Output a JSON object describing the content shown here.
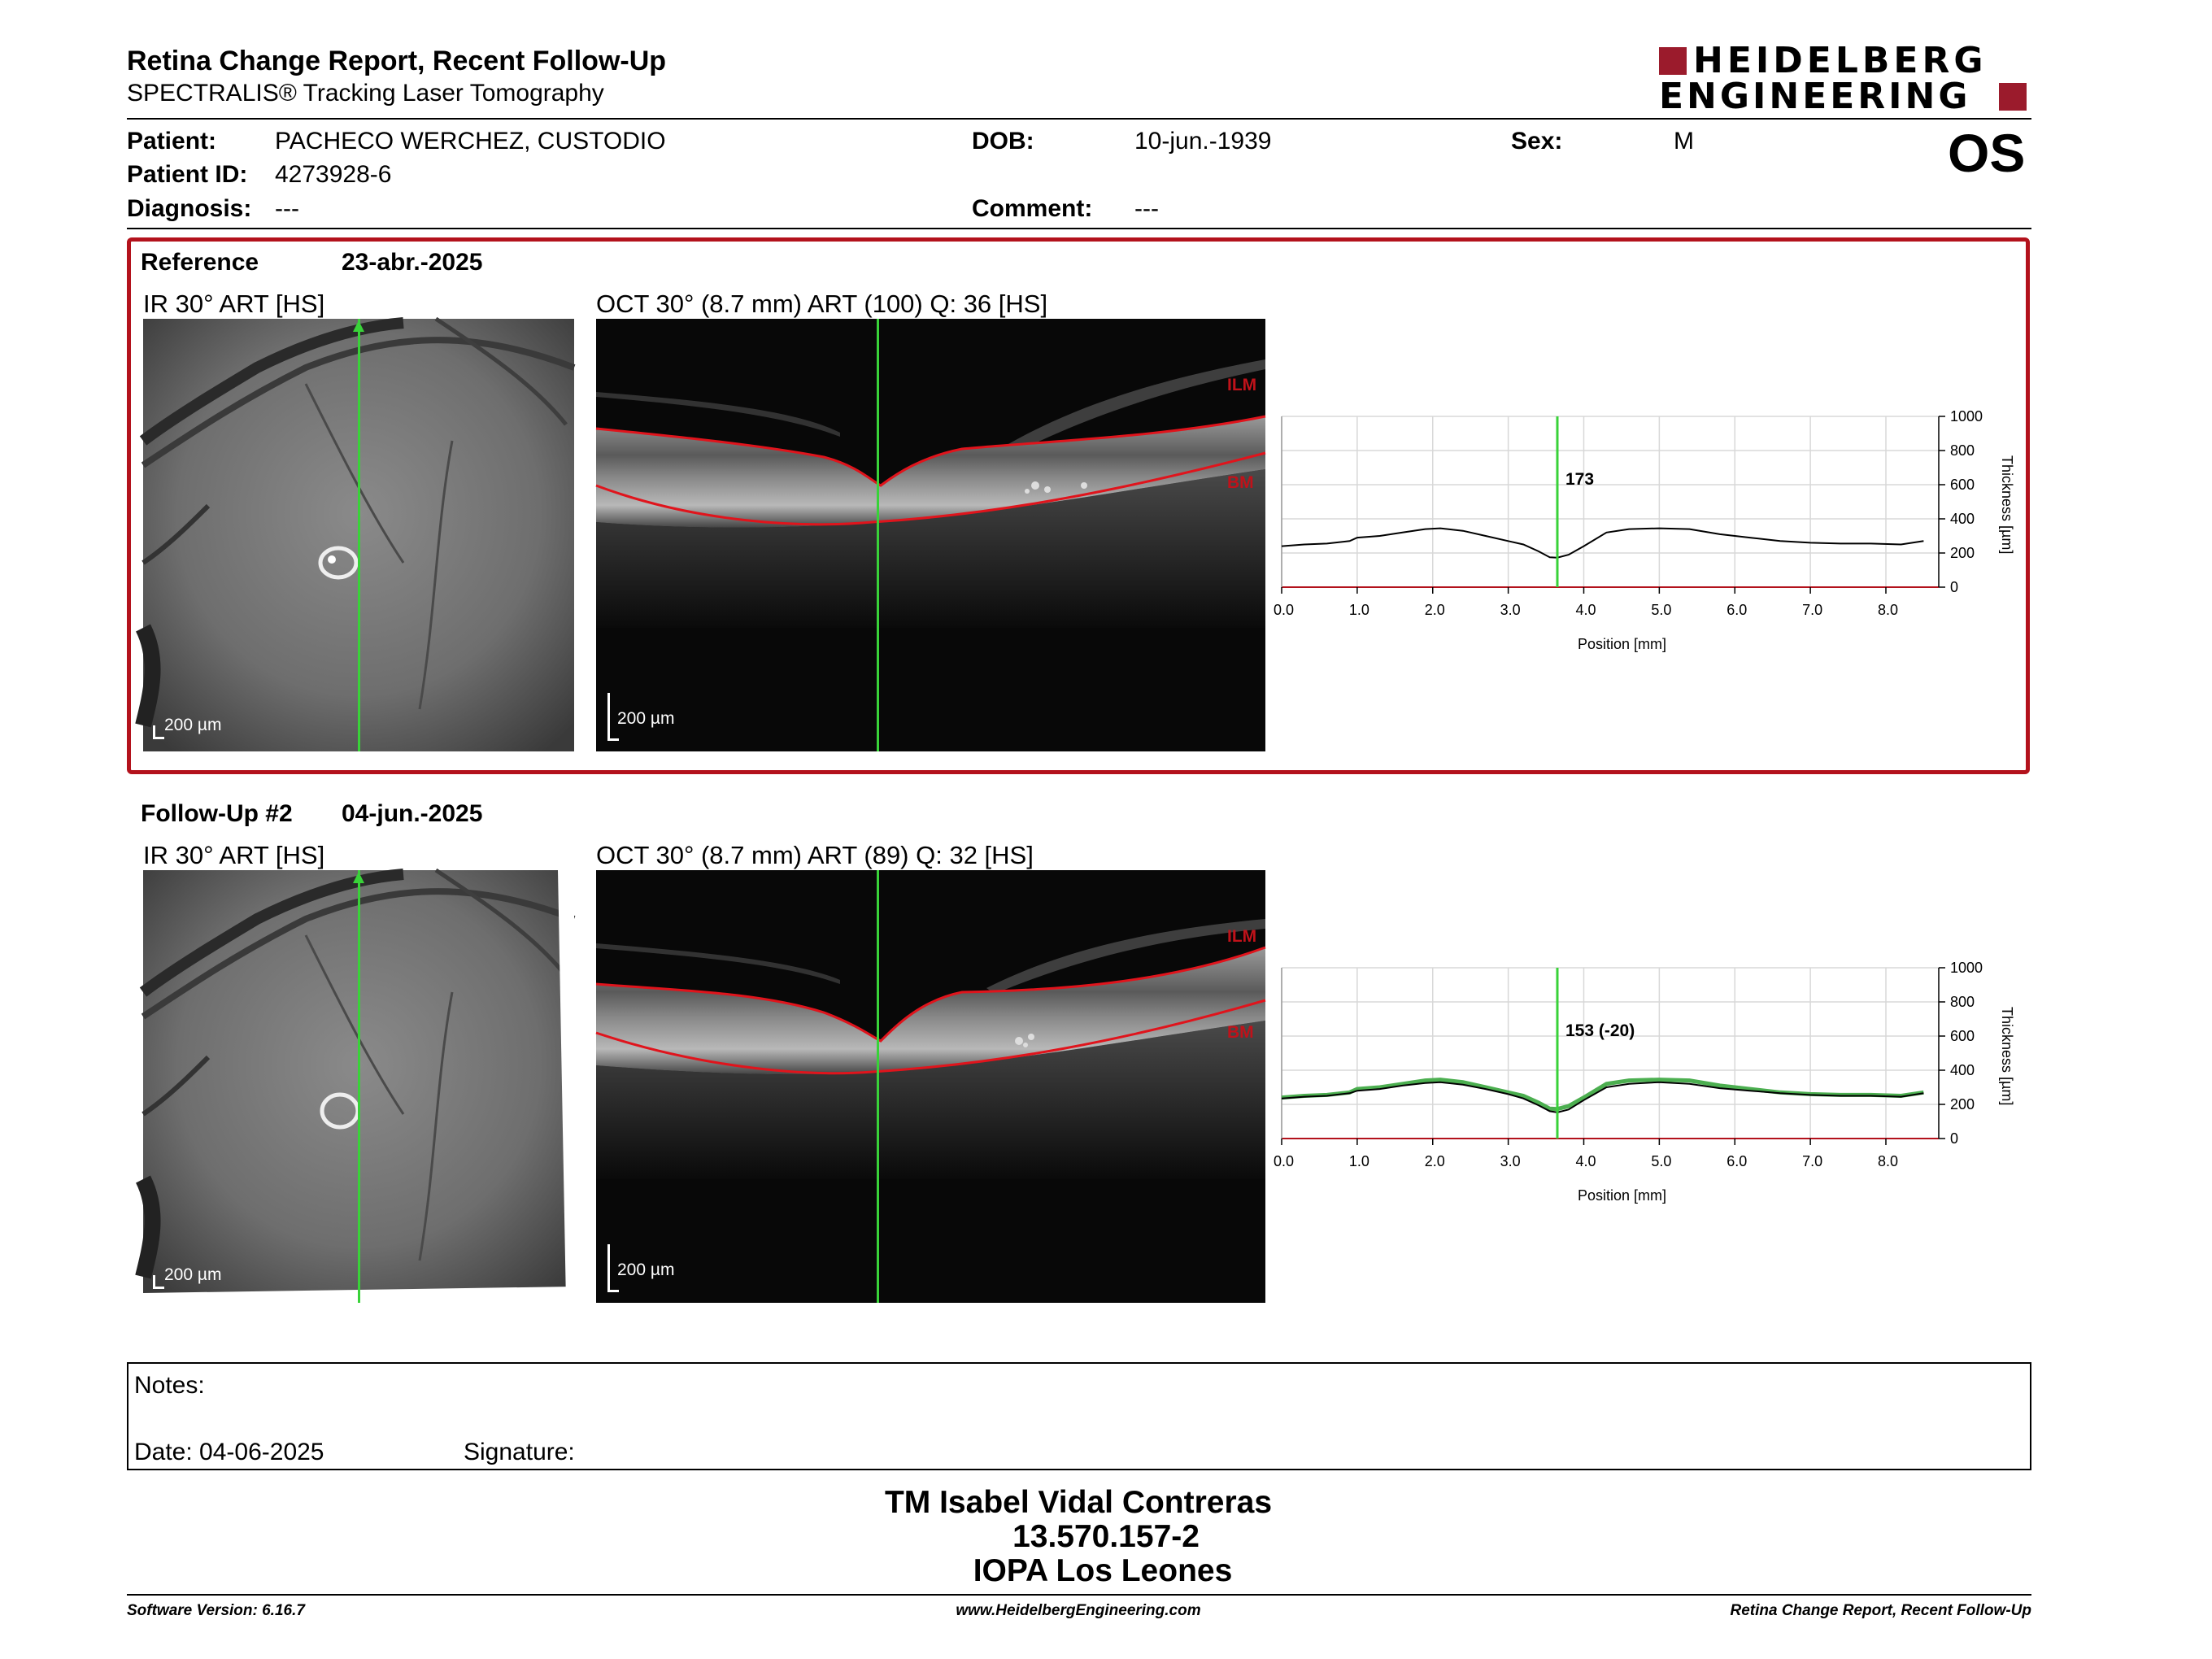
{
  "header": {
    "title": "Retina Change Report, Recent Follow-Up",
    "subtitle": "SPECTRALIS® Tracking Laser Tomography",
    "brand_line1": "HEIDELBERG",
    "brand_line2": "ENGINEERING",
    "eye": "OS"
  },
  "patient": {
    "patient_label": "Patient:",
    "patient_value": "PACHECO WERCHEZ, CUSTODIO",
    "id_label": "Patient ID:",
    "id_value": "4273928-6",
    "diagnosis_label": "Diagnosis:",
    "diagnosis_value": "---",
    "dob_label": "DOB:",
    "dob_value": "10-jun.-1939",
    "comment_label": "Comment:",
    "comment_value": "---",
    "sex_label": "Sex:",
    "sex_value": "M"
  },
  "colors": {
    "accent_red": "#b3121c",
    "brand_red": "#9b1b2c",
    "scan_green": "#39d239",
    "ref_green": "#4caf50"
  },
  "reference": {
    "label": "Reference",
    "date": "23-abr.-2025",
    "ir_caption": "IR 30° ART [HS]",
    "oct_caption": "OCT 30° (8.7 mm) ART (100) Q: 36 [HS]",
    "ir_scale": "200 µm",
    "oct_scale": "200 µm",
    "ilm": "ILM",
    "bm": "BM"
  },
  "followup": {
    "label": "Follow-Up #2",
    "date": "04-jun.-2025",
    "ir_caption": "IR 30° ART [HS]",
    "oct_caption": "OCT 30° (8.7 mm) ART (89) Q: 32 [HS]",
    "ir_scale": "200 µm",
    "oct_scale": "200 µm",
    "ilm": "ILM",
    "bm": "BM"
  },
  "chart_data": [
    {
      "type": "line",
      "xlabel": "Position [mm]",
      "ylabel": "Thickness [µm]",
      "xlim": [
        0,
        8.7
      ],
      "ylim": [
        0,
        1000
      ],
      "xticks": [
        "0.0",
        "1.0",
        "2.0",
        "3.0",
        "4.0",
        "5.0",
        "6.0",
        "7.0",
        "8.0"
      ],
      "yticks": [
        "0",
        "200",
        "400",
        "600",
        "800",
        "1000"
      ],
      "marker_x": 3.65,
      "annotation": "173",
      "grid": true,
      "series": [
        {
          "x": [
            0,
            0.3,
            0.6,
            0.9,
            1.0,
            1.3,
            1.6,
            1.9,
            2.1,
            2.4,
            2.7,
            3.0,
            3.2,
            3.4,
            3.55,
            3.65,
            3.8,
            4.0,
            4.3,
            4.6,
            5.0,
            5.4,
            5.8,
            6.2,
            6.6,
            7.0,
            7.4,
            7.8,
            8.2,
            8.5
          ],
          "values": [
            240,
            250,
            255,
            270,
            290,
            300,
            320,
            340,
            345,
            330,
            300,
            270,
            250,
            210,
            175,
            173,
            190,
            240,
            320,
            340,
            345,
            340,
            310,
            290,
            270,
            260,
            255,
            255,
            250,
            270
          ]
        }
      ]
    },
    {
      "type": "line",
      "xlabel": "Position [mm]",
      "ylabel": "Thickness [µm]",
      "xlim": [
        0,
        8.7
      ],
      "ylim": [
        0,
        1000
      ],
      "xticks": [
        "0.0",
        "1.0",
        "2.0",
        "3.0",
        "4.0",
        "5.0",
        "6.0",
        "7.0",
        "8.0"
      ],
      "yticks": [
        "0",
        "200",
        "400",
        "600",
        "800",
        "1000"
      ],
      "marker_x": 3.65,
      "annotation": "153 (-20)",
      "grid": true,
      "series": [
        {
          "x": [
            0,
            0.3,
            0.6,
            0.9,
            1.0,
            1.3,
            1.6,
            1.9,
            2.1,
            2.4,
            2.7,
            3.0,
            3.2,
            3.4,
            3.55,
            3.65,
            3.8,
            4.0,
            4.3,
            4.6,
            5.0,
            5.4,
            5.8,
            6.2,
            6.6,
            7.0,
            7.4,
            7.8,
            8.2,
            8.5
          ],
          "values": [
            240,
            250,
            255,
            270,
            290,
            300,
            320,
            340,
            345,
            330,
            300,
            270,
            250,
            210,
            175,
            173,
            190,
            240,
            320,
            340,
            345,
            340,
            310,
            290,
            270,
            260,
            255,
            255,
            250,
            270
          ]
        },
        {
          "x": [
            0,
            0.3,
            0.6,
            0.9,
            1.0,
            1.3,
            1.6,
            1.9,
            2.1,
            2.4,
            2.7,
            3.0,
            3.2,
            3.4,
            3.55,
            3.65,
            3.8,
            4.0,
            4.3,
            4.6,
            5.0,
            5.4,
            5.8,
            6.2,
            6.6,
            7.0,
            7.4,
            7.8,
            8.2,
            8.5
          ],
          "values": [
            235,
            245,
            250,
            265,
            280,
            290,
            310,
            325,
            330,
            315,
            290,
            260,
            235,
            195,
            160,
            153,
            170,
            225,
            300,
            320,
            330,
            320,
            295,
            280,
            265,
            255,
            250,
            250,
            245,
            265
          ]
        }
      ]
    }
  ],
  "notes": {
    "notes_label": "Notes:",
    "date_label": "Date: 04-06-2025",
    "signature_label": "Signature:"
  },
  "stamp": {
    "line1": "TM Isabel Vidal Contreras",
    "line2": "13.570.157-2",
    "line3": "IOPA Los Leones"
  },
  "footer": {
    "software": "Software Version: 6.16.7",
    "website": "www.HeidelbergEngineering.com",
    "report": "Retina Change Report, Recent Follow-Up"
  }
}
